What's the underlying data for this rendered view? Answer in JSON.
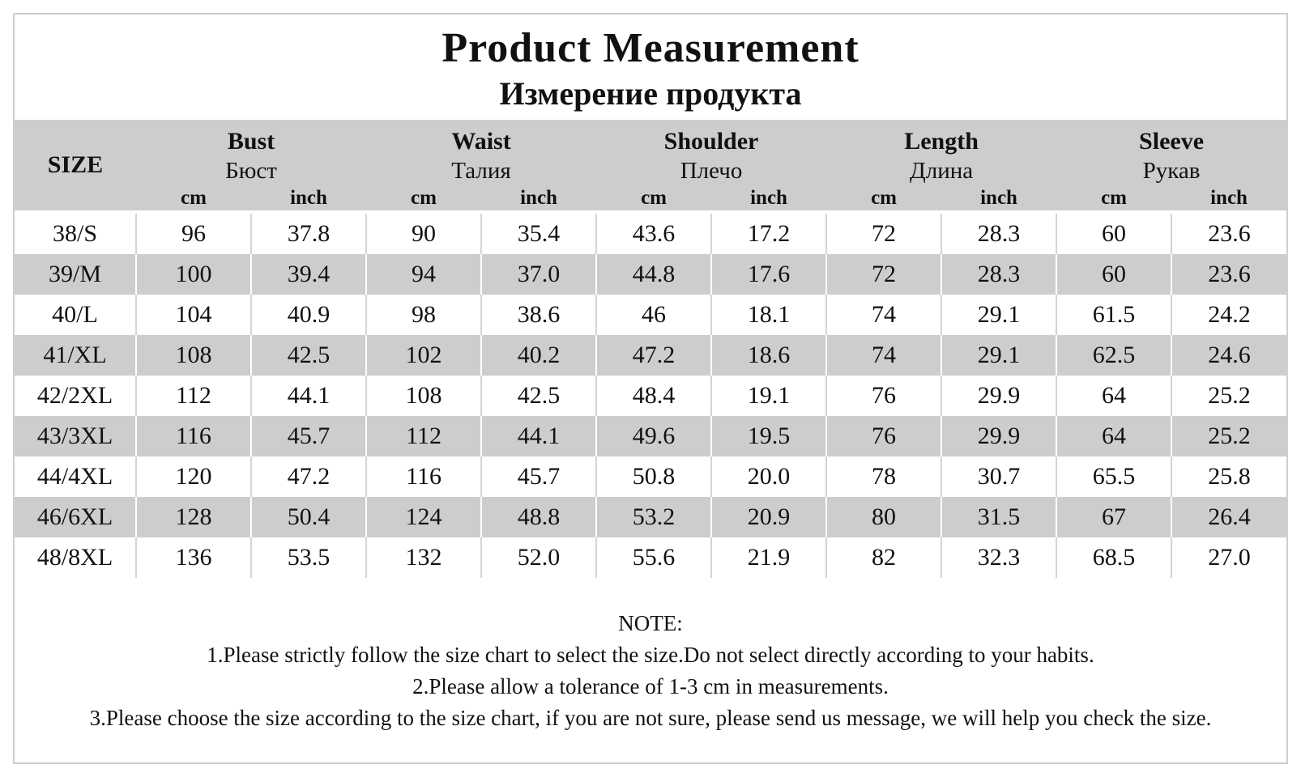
{
  "title": "Product Measurement",
  "subtitle": "Измерение продукта",
  "table": {
    "size_label": "SIZE",
    "columns": [
      {
        "en": "Bust",
        "ru": "Бюст"
      },
      {
        "en": "Waist",
        "ru": "Талия"
      },
      {
        "en": "Shoulder",
        "ru": "Плечо"
      },
      {
        "en": "Length",
        "ru": "Длина"
      },
      {
        "en": "Sleeve",
        "ru": "Рукав"
      }
    ],
    "units": [
      "cm",
      "inch"
    ],
    "rows": [
      {
        "size": "38/S",
        "values": [
          "96",
          "37.8",
          "90",
          "35.4",
          "43.6",
          "17.2",
          "72",
          "28.3",
          "60",
          "23.6"
        ]
      },
      {
        "size": "39/M",
        "values": [
          "100",
          "39.4",
          "94",
          "37.0",
          "44.8",
          "17.6",
          "72",
          "28.3",
          "60",
          "23.6"
        ]
      },
      {
        "size": "40/L",
        "values": [
          "104",
          "40.9",
          "98",
          "38.6",
          "46",
          "18.1",
          "74",
          "29.1",
          "61.5",
          "24.2"
        ]
      },
      {
        "size": "41/XL",
        "values": [
          "108",
          "42.5",
          "102",
          "40.2",
          "47.2",
          "18.6",
          "74",
          "29.1",
          "62.5",
          "24.6"
        ]
      },
      {
        "size": "42/2XL",
        "values": [
          "112",
          "44.1",
          "108",
          "42.5",
          "48.4",
          "19.1",
          "76",
          "29.9",
          "64",
          "25.2"
        ]
      },
      {
        "size": "43/3XL",
        "values": [
          "116",
          "45.7",
          "112",
          "44.1",
          "49.6",
          "19.5",
          "76",
          "29.9",
          "64",
          "25.2"
        ]
      },
      {
        "size": "44/4XL",
        "values": [
          "120",
          "47.2",
          "116",
          "45.7",
          "50.8",
          "20.0",
          "78",
          "30.7",
          "65.5",
          "25.8"
        ]
      },
      {
        "size": "46/6XL",
        "values": [
          "128",
          "50.4",
          "124",
          "48.8",
          "53.2",
          "20.9",
          "80",
          "31.5",
          "67",
          "26.4"
        ]
      },
      {
        "size": "48/8XL",
        "values": [
          "136",
          "53.5",
          "132",
          "52.0",
          "55.6",
          "21.9",
          "82",
          "32.3",
          "68.5",
          "27.0"
        ]
      }
    ]
  },
  "notes": {
    "heading": "NOTE:",
    "items": [
      "1.Please strictly follow the size chart to select the size.Do not select directly according to your habits.",
      "2.Please allow a tolerance of 1-3 cm in measurements.",
      "3.Please choose the size according to the size chart, if you are not sure, please send us message, we will help you check the size."
    ]
  },
  "colors": {
    "header_bg": "#cdcdcd",
    "stripe_bg": "#cdcdcd",
    "border": "#cfcfcf"
  }
}
